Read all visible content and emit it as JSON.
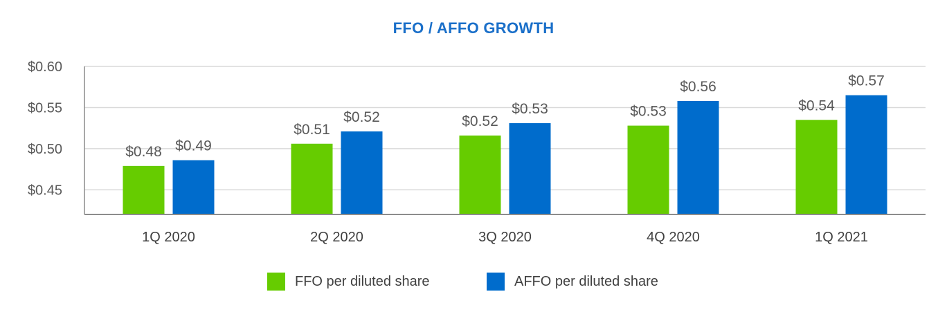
{
  "chart_data": {
    "type": "bar",
    "title": "FFO / AFFO GROWTH",
    "categories": [
      "1Q 2020",
      "2Q 2020",
      "3Q 2020",
      "4Q 2020",
      "1Q 2021"
    ],
    "series": [
      {
        "name": "FFO per diluted share",
        "color": "#66cc00",
        "values": [
          0.479,
          0.506,
          0.516,
          0.528,
          0.535
        ],
        "labels": [
          "$0.48",
          "$0.51",
          "$0.52",
          "$0.53",
          "$0.54"
        ]
      },
      {
        "name": "AFFO per diluted share",
        "color": "#006ccc",
        "values": [
          0.486,
          0.521,
          0.531,
          0.558,
          0.565
        ],
        "labels": [
          "$0.49",
          "$0.52",
          "$0.53",
          "$0.56",
          "$0.57"
        ]
      }
    ],
    "ylim": [
      0.42,
      0.6
    ],
    "yticks": [
      0.45,
      0.5,
      0.55,
      0.6
    ],
    "ytick_labels": [
      "$0.45",
      "$0.50",
      "$0.55",
      "$0.60"
    ],
    "xlabel": "",
    "ylabel": "",
    "grid": true,
    "legend_position": "bottom-center",
    "title_color": "#1a6fc9"
  }
}
